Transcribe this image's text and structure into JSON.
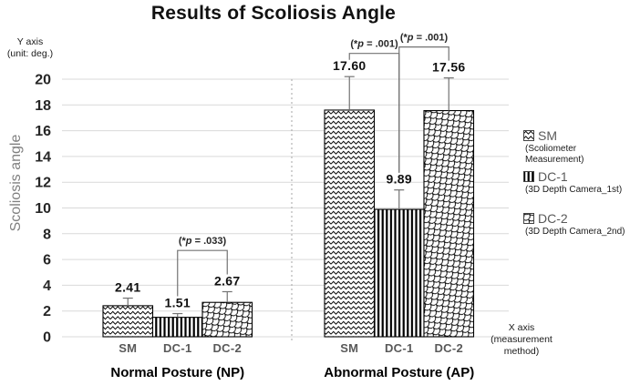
{
  "title": "Results of Scoliosis Angle",
  "y_axis_corner_label": {
    "line1": "Y axis",
    "line2": "(unit: deg.)"
  },
  "y_axis_title": "Scoliosis angle",
  "x_axis_corner_label": {
    "line1": "X axis",
    "line2": "(measurement",
    "line3": "method)"
  },
  "legend": {
    "position": "right",
    "items": [
      {
        "key": "SM",
        "desc_line1": "(Scoliometer",
        "desc_line2": "Measurement)",
        "pattern": "zigzag"
      },
      {
        "key": "DC-1",
        "desc_line1": "(3D Depth Camera_1st)",
        "desc_line2": "",
        "pattern": "vertical-stripes"
      },
      {
        "key": "DC-2",
        "desc_line1": "(3D Depth Camera_2nd)",
        "desc_line2": "",
        "pattern": "fish-scale"
      }
    ]
  },
  "colors": {
    "grid": "#d9d9d9",
    "divider": "#a6a6a6",
    "error_bar": "#737373",
    "bracket": "#737373",
    "bar_outline": "#000000",
    "pattern_ink": "#000000",
    "text_dark": "#111111",
    "text_gray": "#595959"
  },
  "chart_data": {
    "type": "bar",
    "title": "Results of Scoliosis Angle",
    "ylabel": "Scoliosis angle",
    "y_unit": "deg.",
    "xlabel": "measurement method",
    "ylim": [
      0,
      20
    ],
    "ytick_step": 2,
    "grid": true,
    "legend_position": "right",
    "categories": [
      "SM",
      "DC-1",
      "DC-2"
    ],
    "groups": [
      {
        "label": "Normal Posture (NP)",
        "values": [
          2.41,
          1.51,
          2.67
        ],
        "value_labels": [
          "2.41",
          "1.51",
          "2.67"
        ],
        "error_tops": [
          3.0,
          1.8,
          3.5
        ]
      },
      {
        "label": "Abnormal Posture (AP)",
        "values": [
          17.6,
          9.89,
          17.56
        ],
        "value_labels": [
          "17.60",
          "9.89",
          "17.56"
        ],
        "error_tops": [
          20.2,
          11.4,
          20.1
        ]
      }
    ],
    "significance": [
      {
        "group": 0,
        "from": 1,
        "to": 2,
        "height_units": 6.7,
        "label": "(*p = .033)",
        "label_parts": [
          "(*",
          "p",
          " = .033)"
        ]
      },
      {
        "group": 1,
        "from": 0,
        "to": 1,
        "height_units": 22.0,
        "label": "(*p = .001)",
        "label_parts": [
          "(*",
          "p",
          " = .001)"
        ]
      },
      {
        "group": 1,
        "from": 1,
        "to": 2,
        "height_units": 22.5,
        "label": "(*p = .001)",
        "label_parts": [
          "(*",
          "p",
          " = .001)"
        ]
      }
    ]
  }
}
